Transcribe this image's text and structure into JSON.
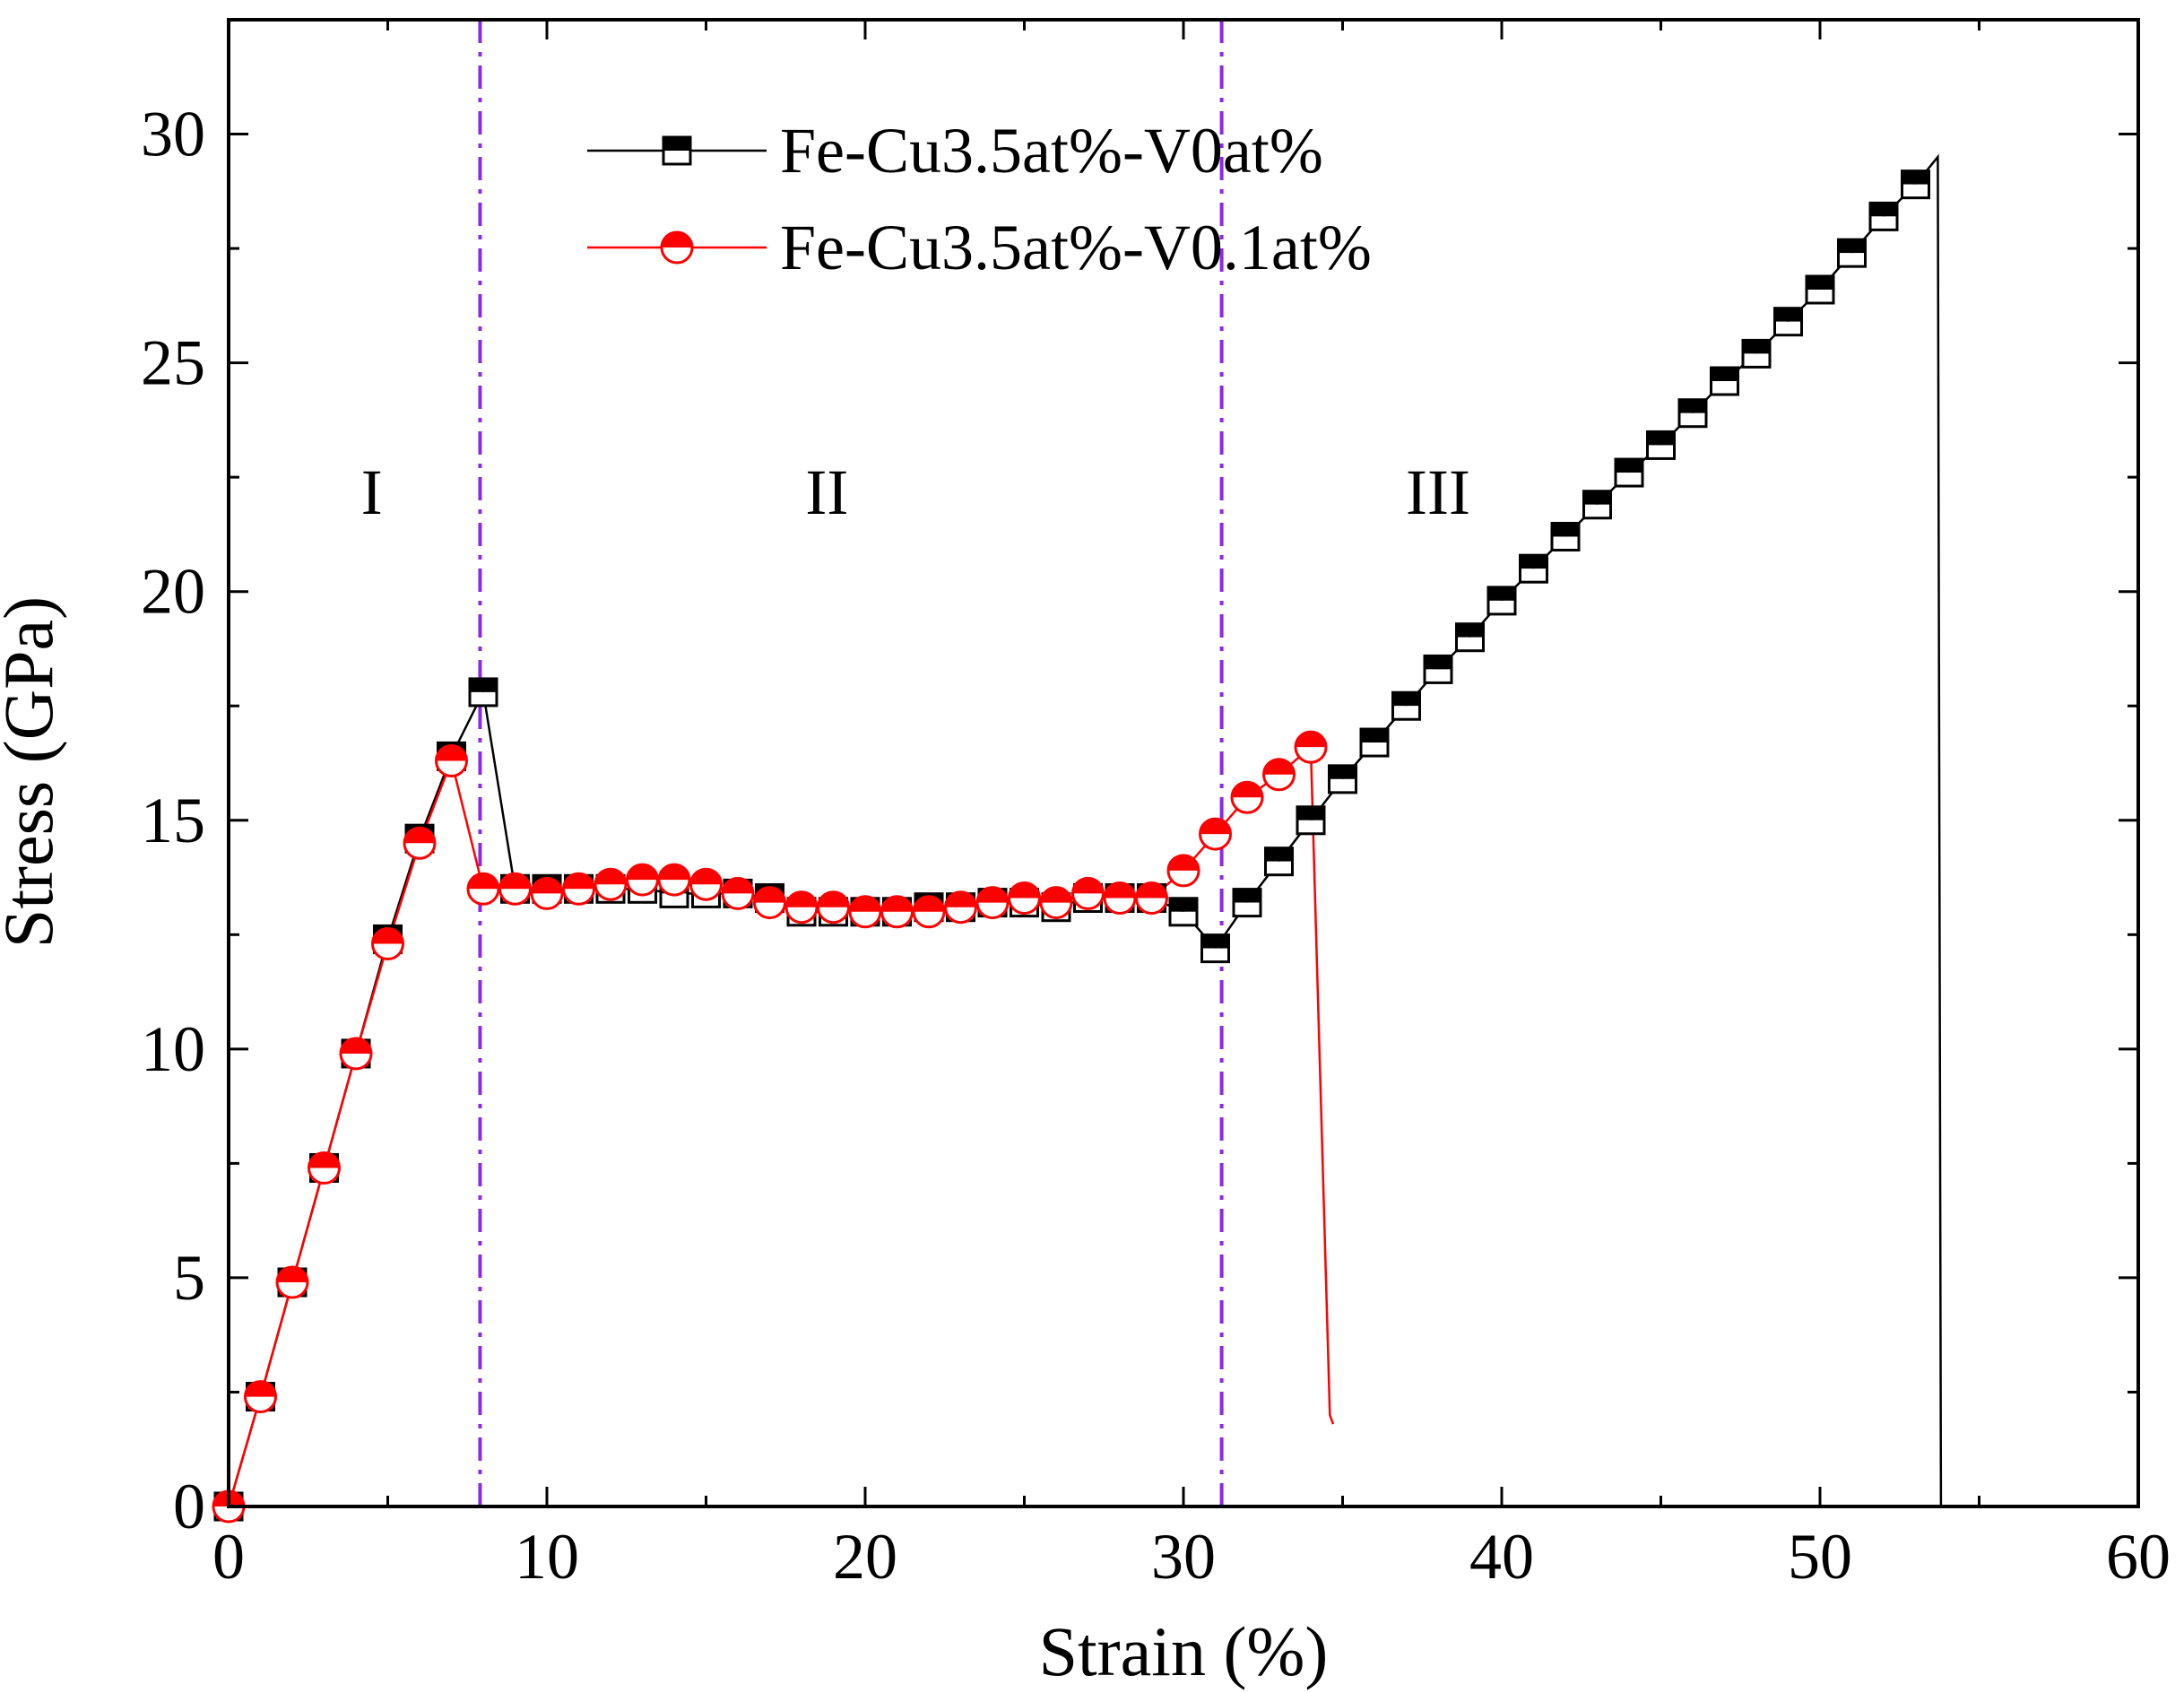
{
  "chart_data": {
    "type": "line",
    "xlabel": "Strain (%)",
    "ylabel": "Stress (GPa)",
    "xlim": [
      0,
      60
    ],
    "ylim": [
      0,
      32.5
    ],
    "xticks": [
      0,
      10,
      20,
      30,
      40,
      50,
      60
    ],
    "yticks": [
      0,
      5,
      10,
      15,
      20,
      25,
      30
    ],
    "legend_position": "top-center",
    "regions": [
      {
        "label": "I",
        "x": 4.5,
        "y": 21.7
      },
      {
        "label": "II",
        "x": 18.8,
        "y": 21.7
      },
      {
        "label": "III",
        "x": 38.0,
        "y": 21.7
      }
    ],
    "divider_lines": [
      {
        "x": 7.9,
        "color": "#8A2BE2",
        "style": "dash-dot"
      },
      {
        "x": 31.2,
        "color": "#8A2BE2",
        "style": "dash-dot"
      }
    ],
    "series": [
      {
        "name": "Fe-Cu3.5at%-V0at%",
        "color": "#000000",
        "marker": "square",
        "x": [
          0,
          1,
          2,
          3,
          4,
          5,
          6,
          7,
          8,
          9,
          10,
          11,
          12,
          13,
          14,
          15,
          16,
          17,
          18,
          19,
          20,
          21,
          22,
          23,
          24,
          25,
          26,
          27,
          28,
          29,
          30,
          31,
          32,
          33,
          34,
          35,
          36,
          37,
          38,
          39,
          40,
          41,
          42,
          43,
          44,
          45,
          46,
          47,
          48,
          49,
          50,
          51,
          52,
          53
        ],
        "y": [
          0,
          2.4,
          4.9,
          7.4,
          9.9,
          12.4,
          14.6,
          16.4,
          17.8,
          13.5,
          13.5,
          13.5,
          13.5,
          13.5,
          13.4,
          13.4,
          13.4,
          13.3,
          13.0,
          13.0,
          13.0,
          13.0,
          13.1,
          13.1,
          13.2,
          13.2,
          13.1,
          13.3,
          13.3,
          13.3,
          13.0,
          12.2,
          13.2,
          14.1,
          15.0,
          15.9,
          16.7,
          17.5,
          18.3,
          19.0,
          19.8,
          20.5,
          21.2,
          21.9,
          22.6,
          23.2,
          23.9,
          24.6,
          25.2,
          25.9,
          26.6,
          27.4,
          28.2,
          28.9
        ],
        "tail": [
          [
            53.7,
            29.5
          ],
          [
            53.8,
            0
          ]
        ]
      },
      {
        "name": "Fe-Cu3.5at%-V0.1at%",
        "color": "#FF0000",
        "marker": "circle",
        "x": [
          0,
          1,
          2,
          3,
          4,
          5,
          6,
          7,
          8,
          9,
          10,
          11,
          12,
          13,
          14,
          15,
          16,
          17,
          18,
          19,
          20,
          21,
          22,
          23,
          24,
          25,
          26,
          27,
          28,
          29,
          30,
          31,
          32,
          33,
          34
        ],
        "y": [
          0,
          2.4,
          4.9,
          7.4,
          9.9,
          12.3,
          14.5,
          16.3,
          13.5,
          13.5,
          13.4,
          13.5,
          13.6,
          13.7,
          13.7,
          13.6,
          13.4,
          13.2,
          13.1,
          13.1,
          13.0,
          13.0,
          13.0,
          13.1,
          13.2,
          13.3,
          13.2,
          13.4,
          13.3,
          13.3,
          13.9,
          14.7,
          15.5,
          16.0,
          16.6
        ],
        "tail": [
          [
            34.6,
            2.0
          ],
          [
            34.7,
            1.8
          ]
        ]
      }
    ]
  }
}
